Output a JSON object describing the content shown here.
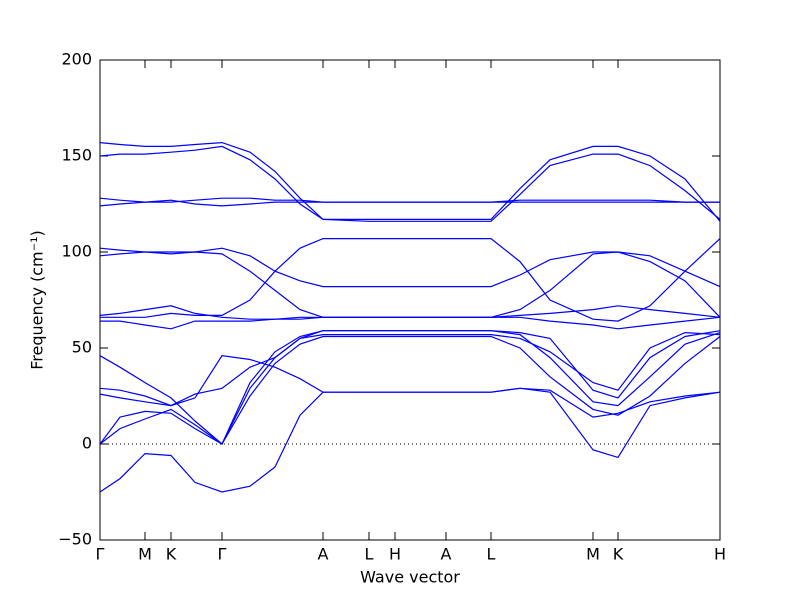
{
  "chart_data": {
    "type": "line",
    "xlabel": "Wave vector",
    "ylabel": "Frequency (cm⁻¹)",
    "xlim": [
      0,
      6.2
    ],
    "xticks": [
      {
        "value": 0,
        "label": "Γ"
      },
      {
        "value": 0.45,
        "label": "M"
      },
      {
        "value": 0.71,
        "label": "K"
      },
      {
        "value": 1.22,
        "label": "Γ"
      },
      {
        "value": 2.23,
        "label": "A"
      },
      {
        "value": 2.69,
        "label": "L"
      },
      {
        "value": 2.95,
        "label": "H"
      },
      {
        "value": 3.46,
        "label": "A"
      },
      {
        "value": 3.91,
        "label": "L"
      },
      {
        "value": 4.93,
        "label": "M"
      },
      {
        "value": 5.18,
        "label": "K"
      },
      {
        "value": 6.2,
        "label": "H"
      }
    ],
    "ylim": [
      -50,
      200
    ],
    "yticks": [
      {
        "value": -50,
        "label": "−50"
      },
      0,
      50,
      100,
      150,
      200
    ],
    "zero_line": true,
    "x": [
      0,
      0.2,
      0.45,
      0.71,
      0.95,
      1.22,
      1.5,
      1.75,
      2.0,
      2.23,
      2.69,
      2.95,
      3.46,
      3.91,
      4.2,
      4.5,
      4.93,
      5.18,
      5.5,
      5.85,
      6.2
    ],
    "series": [
      {
        "color": "#0000ff",
        "values": [
          -25,
          -18,
          -5,
          -6,
          -20,
          -25,
          -22,
          -12,
          15,
          27,
          27,
          27,
          27,
          27,
          29,
          27,
          -3,
          -7,
          20,
          24,
          27
        ]
      },
      {
        "color": "#0000ff",
        "values": [
          0,
          8,
          13,
          18,
          10,
          0,
          25,
          42,
          52,
          56,
          56,
          56,
          56,
          56,
          50,
          35,
          18,
          15,
          25,
          42,
          56
        ]
      },
      {
        "color": "#0000ff",
        "values": [
          0,
          14,
          17,
          16,
          8,
          0,
          29,
          45,
          55,
          59,
          59,
          59,
          59,
          59,
          57,
          45,
          22,
          20,
          35,
          52,
          58
        ]
      },
      {
        "color": "#0000ff",
        "values": [
          46,
          40,
          32,
          24,
          12,
          0,
          32,
          48,
          56,
          59,
          59,
          59,
          59,
          59,
          58,
          55,
          28,
          24,
          45,
          56,
          59
        ]
      },
      {
        "color": "#0000ff",
        "values": [
          29,
          28,
          25,
          20,
          26,
          29,
          40,
          45,
          55,
          57,
          57,
          57,
          57,
          57,
          55,
          48,
          32,
          28,
          50,
          58,
          57
        ]
      },
      {
        "color": "#0000ff",
        "values": [
          26,
          24,
          22,
          20,
          24,
          46,
          44,
          40,
          34,
          27,
          27,
          27,
          27,
          27,
          29,
          28,
          14,
          16,
          22,
          25,
          27
        ]
      },
      {
        "color": "#0000ff",
        "values": [
          64,
          64,
          62,
          60,
          64,
          64,
          64,
          65,
          65,
          66,
          66,
          66,
          66,
          66,
          66,
          64,
          62,
          60,
          62,
          64,
          66
        ]
      },
      {
        "color": "#0000ff",
        "values": [
          67,
          68,
          70,
          72,
          68,
          66,
          65,
          65,
          66,
          66,
          66,
          66,
          66,
          66,
          67,
          68,
          70,
          72,
          70,
          68,
          66
        ]
      },
      {
        "color": "#0000ff",
        "values": [
          66,
          66,
          66,
          68,
          67,
          67,
          75,
          90,
          102,
          107,
          107,
          107,
          107,
          107,
          95,
          75,
          65,
          64,
          72,
          90,
          107
        ]
      },
      {
        "color": "#0000ff",
        "values": [
          98,
          99,
          100,
          100,
          100,
          102,
          98,
          90,
          85,
          82,
          82,
          82,
          82,
          82,
          88,
          96,
          100,
          100,
          98,
          90,
          82
        ]
      },
      {
        "color": "#0000ff",
        "values": [
          102,
          101,
          100,
          99,
          100,
          99,
          90,
          80,
          70,
          66,
          66,
          66,
          66,
          66,
          70,
          80,
          99,
          100,
          95,
          85,
          66
        ]
      },
      {
        "color": "#0000ff",
        "values": [
          124,
          125,
          126,
          127,
          125,
          124,
          125,
          126,
          126,
          126,
          126,
          126,
          126,
          126,
          126,
          126,
          126,
          126,
          126,
          126,
          126
        ]
      },
      {
        "color": "#0000ff",
        "values": [
          128,
          127,
          126,
          126,
          127,
          128,
          128,
          127,
          127,
          126,
          126,
          126,
          126,
          126,
          127,
          127,
          127,
          127,
          127,
          126,
          126
        ]
      },
      {
        "color": "#0000ff",
        "values": [
          150,
          151,
          151,
          152,
          153,
          155,
          148,
          138,
          125,
          117,
          116,
          116,
          116,
          116,
          130,
          145,
          151,
          151,
          145,
          132,
          117
        ]
      },
      {
        "color": "#0000ff",
        "values": [
          157,
          156,
          155,
          155,
          156,
          157,
          152,
          142,
          128,
          117,
          117,
          117,
          117,
          117,
          133,
          148,
          155,
          155,
          150,
          138,
          116
        ]
      }
    ]
  }
}
